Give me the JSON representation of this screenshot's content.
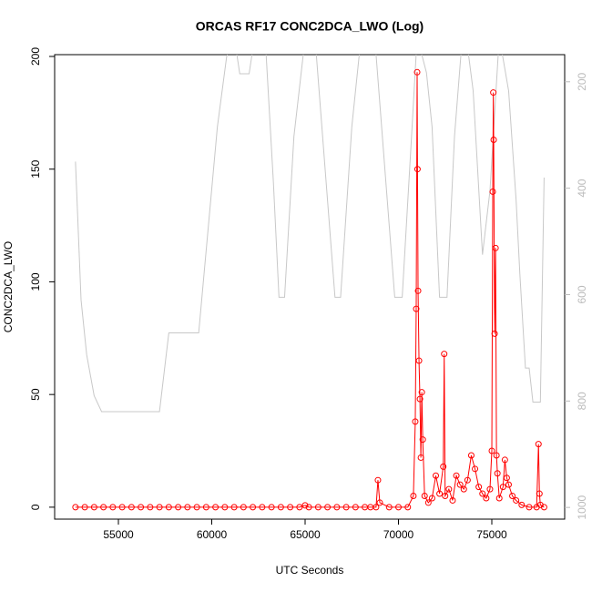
{
  "chart_data": {
    "type": "line",
    "title": "ORCAS RF17 CONC2DCA_LWO (Log)",
    "xlabel": "UTC Seconds",
    "ylabel": "CONC2DCA_LWO",
    "xlim": [
      51585,
      78902
    ],
    "xticks": [
      55000,
      60000,
      65000,
      70000,
      75000
    ],
    "ylim": [
      -5.3,
      200.8
    ],
    "yticks": [
      0,
      50,
      100,
      150,
      200
    ],
    "y2lim": [
      1022,
      149
    ],
    "y2ticks": [
      200,
      400,
      600,
      800,
      1000
    ],
    "series": [
      {
        "color": "#c8c8c8",
        "axis": "y2",
        "markers": false,
        "x": [
          52700,
          53000,
          53300,
          53700,
          54100,
          57200,
          57700,
          59300,
          60300,
          60800,
          61200,
          61500,
          62000,
          62300,
          62800,
          63300,
          63600,
          63900,
          64400,
          64900,
          65200,
          65600,
          66600,
          66900,
          67500,
          67900,
          68300,
          68800,
          69800,
          70200,
          70700,
          71000,
          71500,
          71800,
          72200,
          72600,
          73000,
          73500,
          74000,
          74500,
          74900,
          75400,
          75900,
          76300,
          76500,
          76800,
          77000,
          77200,
          77600,
          77800
        ],
        "values": [
          350,
          610,
          713,
          790,
          820,
          820,
          672,
          672,
          285,
          152,
          115,
          185,
          185,
          115,
          80,
          388,
          605,
          605,
          303,
          149,
          80,
          149,
          605,
          605,
          285,
          149,
          80,
          149,
          605,
          605,
          303,
          115,
          183,
          285,
          605,
          605,
          303,
          80,
          217,
          525,
          405,
          115,
          217,
          422,
          560,
          738,
          738,
          802,
          802,
          380
        ]
      },
      {
        "color": "#ff0000",
        "axis": "y",
        "markers": true,
        "x": [
          52700,
          53200,
          53700,
          54200,
          54700,
          55200,
          55700,
          56200,
          56700,
          57200,
          57700,
          58200,
          58700,
          59200,
          59700,
          60200,
          60700,
          61200,
          61700,
          62200,
          62700,
          63200,
          63700,
          64200,
          64700,
          65000,
          65200,
          65700,
          66200,
          66700,
          67200,
          67700,
          68200,
          68500,
          68800,
          68900,
          69000,
          69500,
          70000,
          70500,
          70800,
          70900,
          70950,
          71000,
          71020,
          71050,
          71100,
          71150,
          71200,
          71250,
          71300,
          71400,
          71600,
          71800,
          72000,
          72200,
          72400,
          72450,
          72500,
          72700,
          72900,
          73100,
          73300,
          73500,
          73700,
          73900,
          74100,
          74300,
          74500,
          74700,
          74900,
          75000,
          75050,
          75080,
          75100,
          75150,
          75200,
          75250,
          75300,
          75400,
          75600,
          75700,
          75800,
          75900,
          76100,
          76300,
          76600,
          77000,
          77400,
          77500,
          77550,
          77600,
          77800
        ],
        "values": [
          0,
          0,
          0,
          0,
          0,
          0,
          0,
          0,
          0,
          0,
          0,
          0,
          0,
          0,
          0,
          0,
          0,
          0,
          0,
          0,
          0,
          0,
          0,
          0,
          0,
          0.8,
          0,
          0,
          0,
          0,
          0,
          0,
          0,
          0,
          0,
          12,
          2,
          0,
          0,
          0,
          5,
          38,
          88,
          193,
          150,
          96,
          65,
          48,
          22,
          51,
          30,
          5,
          2,
          4,
          14,
          6,
          18,
          68,
          5,
          8,
          3,
          14,
          10,
          8,
          12,
          23,
          17,
          9,
          6,
          4,
          8,
          25,
          140,
          184,
          163,
          77,
          115,
          23,
          15,
          4,
          9,
          21,
          13,
          10,
          5,
          3,
          1,
          0,
          0,
          28,
          6,
          1,
          0
        ]
      }
    ]
  }
}
